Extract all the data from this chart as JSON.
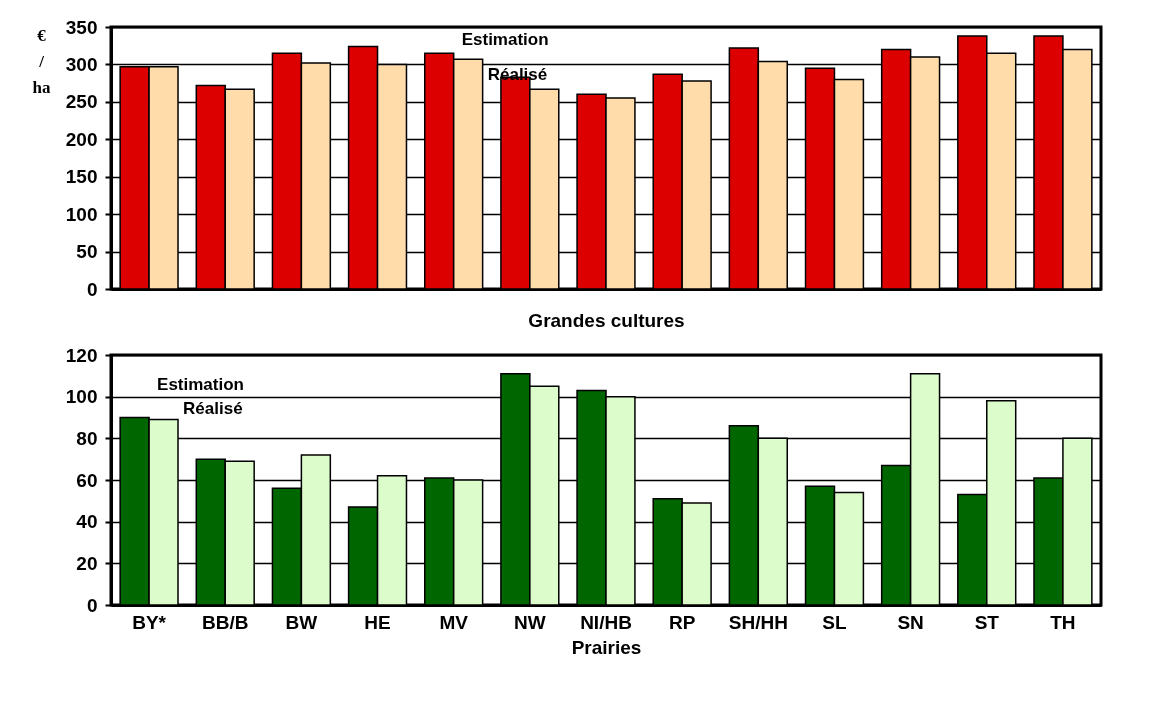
{
  "chart_data": [
    {
      "type": "bar",
      "xlabel": "Grandes cultures",
      "ylabel": "€ / ha",
      "categories": [
        null,
        null,
        null,
        null,
        null,
        null,
        null,
        null,
        null,
        null,
        null,
        null,
        null
      ],
      "tick_labels": "y",
      "ylim": [
        0,
        350
      ],
      "yticks": [
        0,
        50,
        100,
        150,
        200,
        250,
        300,
        350
      ],
      "grid": "y",
      "legend": false,
      "series": [
        {
          "name": "Estimation",
          "color": "#dd0000",
          "values": [
            297,
            272,
            315,
            324,
            315,
            283,
            260,
            287,
            322,
            295,
            320,
            338,
            338
          ]
        },
        {
          "name": "Réalisé",
          "color": "#ffdcaa",
          "values": [
            297,
            267,
            302,
            300,
            307,
            267,
            255,
            278,
            304,
            280,
            310,
            315,
            320
          ]
        }
      ]
    },
    {
      "type": "bar",
      "xlabel": "Prairies",
      "categories": [
        "BY*",
        "BB/B",
        "BW",
        "HE",
        "MV",
        "NW",
        "NI/HB",
        "RP",
        "SH/HH",
        "SL",
        "SN",
        "ST",
        "TH"
      ],
      "ylim": [
        0,
        120
      ],
      "yticks": [
        0,
        20,
        40,
        60,
        80,
        100,
        120
      ],
      "grid": "y",
      "legend": false,
      "series": [
        {
          "name": "Estimation",
          "color": "#006600",
          "values": [
            90,
            70,
            56,
            47,
            61,
            111,
            103,
            51,
            86,
            57,
            67,
            53,
            61
          ]
        },
        {
          "name": "Réalisé",
          "color": "#ddfccc",
          "values": [
            89,
            69,
            72,
            62,
            60,
            105,
            100,
            49,
            80,
            54,
            111,
            98,
            80
          ]
        }
      ]
    }
  ]
}
